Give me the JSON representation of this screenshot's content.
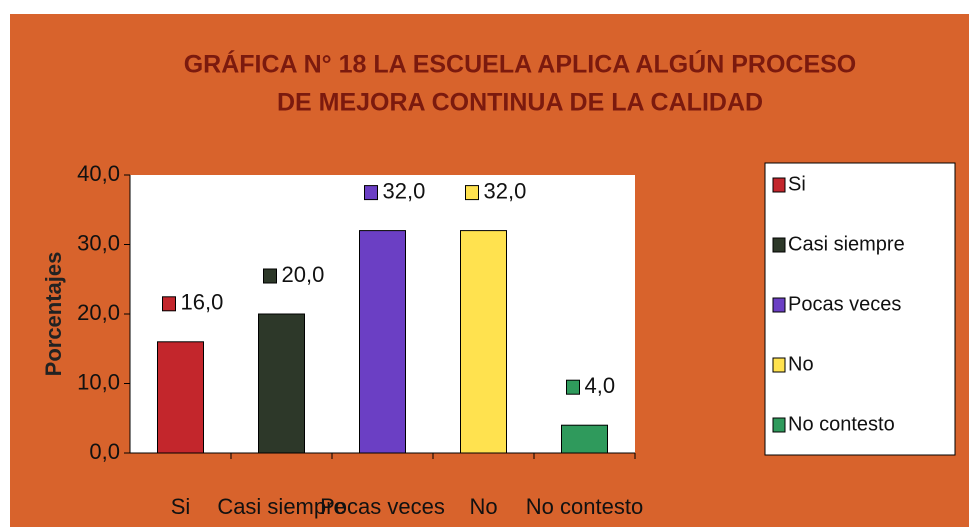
{
  "chart_data": {
    "type": "bar",
    "title": [
      "GRÁFICA N° 18 LA ESCUELA APLICA ALGÚN PROCESO",
      "DE MEJORA CONTINUA DE LA CALIDAD"
    ],
    "y_label": "Porcentajes",
    "categories": [
      "Si",
      "Casi siempre",
      "Pocas veces",
      "No",
      "No contesto"
    ],
    "values": [
      16,
      20,
      32,
      32,
      4
    ],
    "value_labels": [
      "16,0",
      "20,0",
      "32,0",
      "32,0",
      "4,0"
    ],
    "colors": [
      "#c3262c",
      "#2d3829",
      "#6b3fc4",
      "#ffe24f",
      "#2f9a5c"
    ],
    "ylim": [
      0,
      40
    ],
    "yticks": [
      {
        "value": 0,
        "label": "0,0"
      },
      {
        "value": 10,
        "label": "10,0"
      },
      {
        "value": 20,
        "label": "20,0"
      },
      {
        "value": 30,
        "label": "30,0"
      },
      {
        "value": 40,
        "label": "40,0"
      }
    ],
    "legend": "right"
  }
}
